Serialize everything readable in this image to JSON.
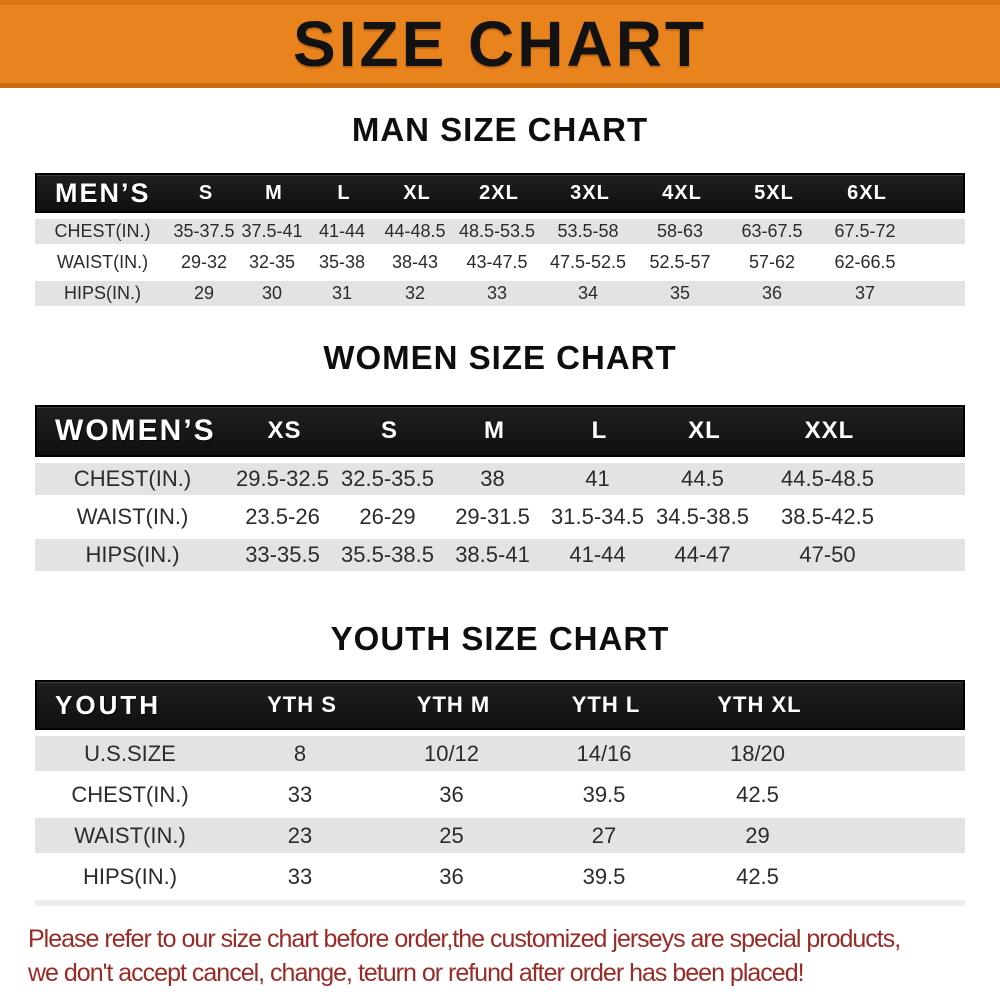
{
  "banner": {
    "title": "SIZE CHART"
  },
  "sections": [
    {
      "title": "MAN SIZE CHART",
      "header_label": "MEN’S",
      "columns": [
        "S",
        "M",
        "L",
        "XL",
        "2XL",
        "3XL",
        "4XL",
        "5XL",
        "6XL"
      ],
      "rows": [
        {
          "label": "CHEST(IN.)",
          "values": [
            "35-37.5",
            "37.5-41",
            "41-44",
            "44-48.5",
            "48.5-53.5",
            "53.5-58",
            "58-63",
            "63-67.5",
            "67.5-72"
          ]
        },
        {
          "label": "WAIST(IN.)",
          "values": [
            "29-32",
            "32-35",
            "35-38",
            "38-43",
            "43-47.5",
            "47.5-52.5",
            "52.5-57",
            "57-62",
            "62-66.5"
          ]
        },
        {
          "label": "HIPS(IN.)",
          "values": [
            "29",
            "30",
            "31",
            "32",
            "33",
            "34",
            "35",
            "36",
            "37"
          ]
        }
      ]
    },
    {
      "title": "WOMEN SIZE CHART",
      "header_label": "WOMEN’S",
      "columns": [
        "XS",
        "S",
        "M",
        "L",
        "XL",
        "XXL"
      ],
      "rows": [
        {
          "label": "CHEST(IN.)",
          "values": [
            "29.5-32.5",
            "32.5-35.5",
            "38",
            "41",
            "44.5",
            "44.5-48.5"
          ]
        },
        {
          "label": "WAIST(IN.)",
          "values": [
            "23.5-26",
            "26-29",
            "29-31.5",
            "31.5-34.5",
            "34.5-38.5",
            "38.5-42.5"
          ]
        },
        {
          "label": "HIPS(IN.)",
          "values": [
            "33-35.5",
            "35.5-38.5",
            "38.5-41",
            "41-44",
            "44-47",
            "47-50"
          ]
        }
      ]
    },
    {
      "title": "YOUTH SIZE CHART",
      "header_label": "YOUTH",
      "columns": [
        "YTH S",
        "YTH M",
        "YTH L",
        "YTH XL"
      ],
      "rows": [
        {
          "label": "U.S.SIZE",
          "values": [
            "8",
            "10/12",
            "14/16",
            "18/20"
          ]
        },
        {
          "label": "CHEST(IN.)",
          "values": [
            "33",
            "36",
            "39.5",
            "42.5"
          ]
        },
        {
          "label": "WAIST(IN.)",
          "values": [
            "23",
            "25",
            "27",
            "29"
          ]
        },
        {
          "label": "HIPS(IN.)",
          "values": [
            "33",
            "36",
            "39.5",
            "42.5"
          ]
        }
      ]
    }
  ],
  "footer": {
    "line1": "Please refer to our size chart before order,the customized jerseys are special products,",
    "line2": "we don't accept cancel, change, teturn or refund after order has been placed!"
  },
  "colors": {
    "banner_orange": "#E8831D",
    "header_bar_black": "#161616",
    "row_gray": "#E3E3E3",
    "footer_red": "#9B2A26"
  }
}
